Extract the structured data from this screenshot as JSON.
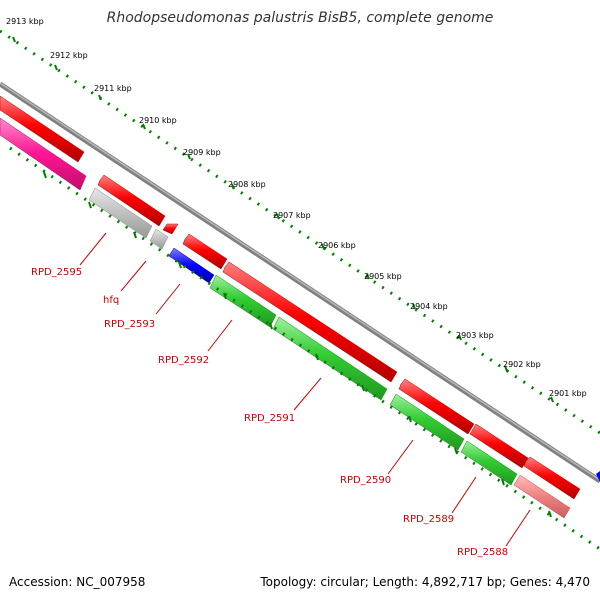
{
  "title": "Rhodopseudomonas palustris BisB5, complete genome",
  "footer": {
    "accession": "Accession: NC_007958",
    "summary": "Topology: circular; Length: 4,892,717 bp; Genes: 4,470"
  },
  "kbp_ticks": [
    "2913 kbp",
    "2912 kbp",
    "2911 kbp",
    "2910 kbp",
    "2909 kbp",
    "2908 kbp",
    "2907 kbp",
    "2906 kbp",
    "2905 kbp",
    "2904 kbp",
    "2903 kbp",
    "2902 kbp",
    "2901 kbp"
  ],
  "gene_labels": [
    "RPD_2595",
    "hfq",
    "RPD_2593",
    "RPD_2592",
    "RPD_2591",
    "RPD_2590",
    "RPD_2589",
    "RPD_2588"
  ],
  "colors": {
    "forward_cds": "#ff0000",
    "reverse_cds": "#00cc00",
    "rna": "#808080",
    "pink_feature": "#ff1493",
    "blue_feature": "#0000ff",
    "salmon_feature": "#f08080",
    "backbone": "#808080",
    "dots": "#008000",
    "label": "#cc0000"
  }
}
